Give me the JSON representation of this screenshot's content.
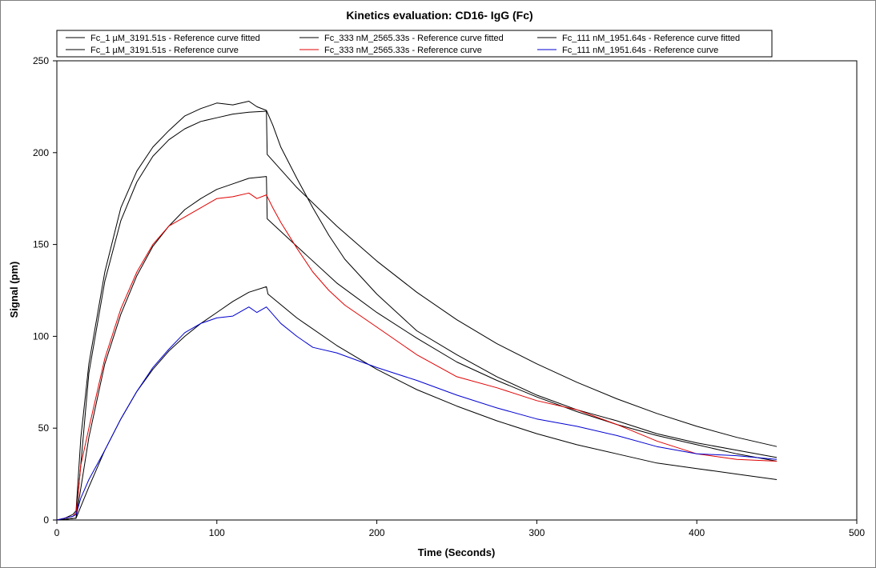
{
  "chart_data": {
    "type": "line",
    "title": "Kinetics evaluation: CD16- IgG (Fc)",
    "xlabel": "Time (Seconds)",
    "ylabel": "Signal (pm)",
    "xlim": [
      0,
      500
    ],
    "ylim": [
      0,
      250
    ],
    "xticks": [
      0,
      100,
      200,
      300,
      400,
      500
    ],
    "yticks": [
      0,
      50,
      100,
      150,
      200,
      250
    ],
    "grid": false,
    "legend_position": "top",
    "series": [
      {
        "name": "Fc_1 µM_3191.51s - Reference curve fitted",
        "color": "#000000",
        "x": [
          0,
          12,
          20,
          30,
          40,
          50,
          60,
          70,
          80,
          90,
          100,
          110,
          120,
          130,
          131,
          131.5,
          150,
          175,
          200,
          225,
          250,
          275,
          300,
          325,
          350,
          375,
          400,
          425,
          450
        ],
        "y": [
          0,
          1,
          80,
          130,
          163,
          184,
          198,
          207,
          213,
          217,
          219,
          221,
          222,
          222.5,
          222.5,
          199,
          181,
          160,
          141,
          124,
          109,
          96,
          85,
          75,
          66,
          58,
          51,
          45,
          40
        ]
      },
      {
        "name": "Fc_1 µM_3191.51s - Reference curve",
        "color": "#000000",
        "x": [
          0,
          5,
          10,
          12,
          15,
          20,
          30,
          40,
          50,
          60,
          70,
          80,
          90,
          100,
          110,
          120,
          125,
          131,
          135,
          140,
          150,
          160,
          170,
          180,
          200,
          225,
          250,
          275,
          300,
          325,
          350,
          375,
          400,
          425,
          450
        ],
        "y": [
          0,
          1,
          3,
          5,
          45,
          85,
          135,
          170,
          190,
          203,
          212,
          220,
          224,
          227,
          226,
          228,
          225,
          223,
          215,
          203,
          186,
          170,
          155,
          142,
          123,
          103,
          90,
          78,
          68,
          60,
          54,
          47,
          42,
          38,
          34
        ]
      },
      {
        "name": "Fc_333 nM_2565.33s - Reference curve fitted",
        "color": "#000000",
        "x": [
          0,
          12,
          20,
          30,
          40,
          50,
          60,
          70,
          80,
          90,
          100,
          110,
          120,
          131,
          131.5,
          150,
          175,
          200,
          225,
          250,
          275,
          300,
          325,
          350,
          375,
          400,
          425,
          450
        ],
        "y": [
          0,
          1,
          45,
          85,
          112,
          133,
          149,
          160,
          169,
          175,
          180,
          183,
          186,
          187,
          164,
          149,
          129,
          113,
          99,
          86,
          76,
          67,
          59,
          52,
          46,
          41,
          36,
          32
        ]
      },
      {
        "name": "Fc_333 nM_2565.33s - Reference curve",
        "color": "#e00000",
        "x": [
          0,
          5,
          10,
          12,
          15,
          20,
          30,
          40,
          50,
          60,
          70,
          80,
          90,
          100,
          110,
          120,
          125,
          131,
          135,
          140,
          150,
          160,
          170,
          180,
          200,
          225,
          250,
          275,
          300,
          325,
          350,
          375,
          400,
          425,
          450
        ],
        "y": [
          0,
          1,
          2,
          4,
          30,
          50,
          88,
          115,
          135,
          150,
          160,
          165,
          170,
          175,
          176,
          178,
          175,
          177,
          170,
          162,
          148,
          135,
          125,
          117,
          105,
          90,
          78,
          72,
          65,
          60,
          52,
          43,
          36,
          33,
          32
        ]
      },
      {
        "name": "Fc_111 nM_1951.64s - Reference curve fitted",
        "color": "#000000",
        "x": [
          0,
          12,
          20,
          30,
          40,
          50,
          60,
          70,
          80,
          90,
          100,
          110,
          120,
          131,
          132,
          150,
          175,
          200,
          225,
          250,
          275,
          300,
          325,
          350,
          375,
          400,
          425,
          450
        ],
        "y": [
          0,
          1,
          18,
          38,
          55,
          70,
          82,
          92,
          100,
          107,
          113,
          119,
          124,
          127,
          123,
          110,
          95,
          82,
          71,
          62,
          54,
          47,
          41,
          36,
          31,
          28,
          25,
          22
        ]
      },
      {
        "name": "Fc_111 nM_1951.64s - Reference curve",
        "color": "#0000d0",
        "x": [
          0,
          5,
          10,
          12,
          15,
          20,
          30,
          40,
          50,
          60,
          70,
          80,
          90,
          100,
          110,
          120,
          125,
          131,
          140,
          150,
          160,
          175,
          200,
          225,
          250,
          275,
          300,
          325,
          350,
          375,
          400,
          425,
          450
        ],
        "y": [
          0,
          1,
          2,
          3,
          12,
          22,
          38,
          55,
          70,
          83,
          93,
          102,
          107,
          110,
          111,
          116,
          113,
          116,
          107,
          100,
          94,
          91,
          83,
          76,
          68,
          61,
          55,
          51,
          46,
          40,
          36,
          35,
          33
        ]
      }
    ]
  }
}
